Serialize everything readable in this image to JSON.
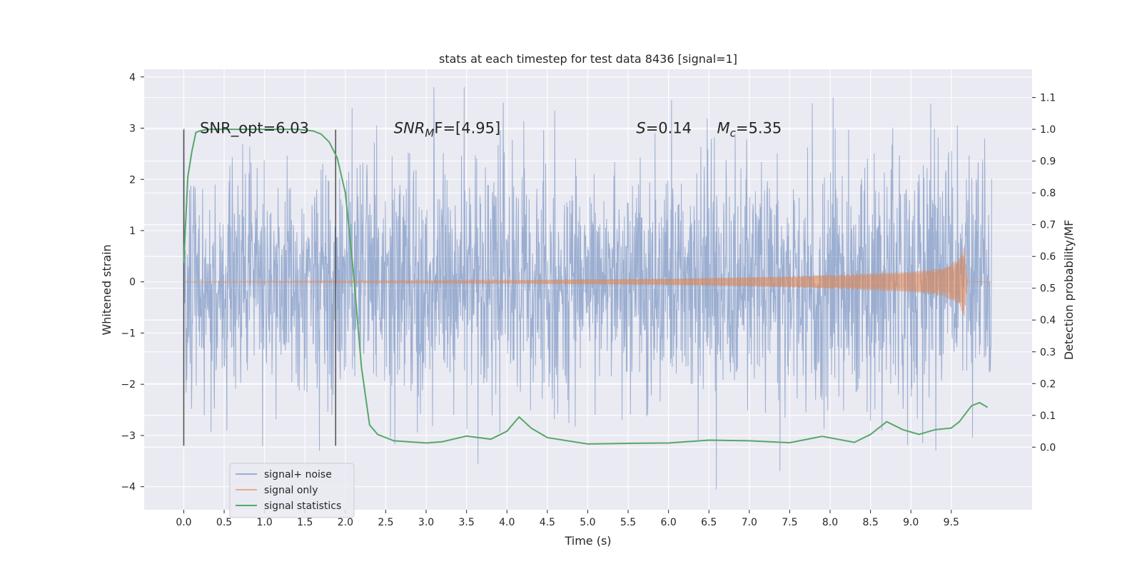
{
  "chart_data": {
    "type": "line",
    "title": "stats at each timestep for test data 8436 [signal=1]",
    "xlabel": "Time (s)",
    "ylabel": "Whitened strain",
    "y2label": "Detection probability/MF",
    "xlim": [
      -0.49,
      10.5
    ],
    "ylim": [
      -4.45,
      4.15
    ],
    "y2lim": [
      -0.197,
      1.189
    ],
    "xticks": [
      0.0,
      0.5,
      1.0,
      1.5,
      2.0,
      2.5,
      3.0,
      3.5,
      4.0,
      4.5,
      5.0,
      5.5,
      6.0,
      6.5,
      7.0,
      7.5,
      8.0,
      8.5,
      9.0,
      9.5
    ],
    "xtick_labels": [
      "0.0",
      "0.5",
      "1.0",
      "1.5",
      "2.0",
      "2.5",
      "3.0",
      "3.5",
      "4.0",
      "4.5",
      "5.0",
      "5.5",
      "6.0",
      "6.5",
      "7.0",
      "7.5",
      "8.0",
      "8.5",
      "9.0",
      "9.5"
    ],
    "yticks": [
      -4,
      -3,
      -2,
      -1,
      0,
      1,
      2,
      3,
      4
    ],
    "ytick_labels": [
      "−4",
      "−3",
      "−2",
      "−1",
      "0",
      "1",
      "2",
      "3",
      "4"
    ],
    "y2ticks": [
      0.0,
      0.1,
      0.2,
      0.3,
      0.4,
      0.5,
      0.6,
      0.7,
      0.8,
      0.9,
      1.0,
      1.1
    ],
    "y2tick_labels": [
      "0.0",
      "0.1",
      "0.2",
      "0.3",
      "0.4",
      "0.5",
      "0.6",
      "0.7",
      "0.8",
      "0.9",
      "1.0",
      "1.1"
    ],
    "grid": true,
    "legend_position": "lower-left",
    "series": [
      {
        "name": "signal+ noise",
        "axis": "left",
        "color": "#4c72b0",
        "opacity": 0.5,
        "x_range": [
          0.0,
          10.0
        ],
        "typical_amplitude": 1.15,
        "peak_min": -4.05,
        "peak_max": 3.8
      },
      {
        "name": "signal only",
        "axis": "left",
        "color": "#dd8452",
        "opacity": 0.6,
        "x_range": [
          0.0,
          10.0
        ],
        "envelope": [
          [
            0.0,
            0.01
          ],
          [
            2.0,
            0.02
          ],
          [
            4.0,
            0.03
          ],
          [
            6.0,
            0.06
          ],
          [
            7.0,
            0.09
          ],
          [
            8.0,
            0.13
          ],
          [
            9.0,
            0.2
          ],
          [
            9.4,
            0.27
          ],
          [
            9.6,
            0.45
          ],
          [
            9.66,
            0.72
          ],
          [
            9.7,
            0.0
          ],
          [
            10.0,
            0.0
          ]
        ]
      },
      {
        "name": "signal statistics",
        "axis": "right",
        "color": "#55a868",
        "x": [
          0.0,
          0.05,
          0.1,
          0.15,
          0.2,
          0.3,
          0.5,
          1.0,
          1.4,
          1.6,
          1.7,
          1.8,
          1.9,
          2.0,
          2.1,
          2.2,
          2.3,
          2.4,
          2.6,
          3.0,
          3.2,
          3.5,
          3.8,
          4.0,
          4.15,
          4.3,
          4.5,
          5.0,
          5.5,
          6.0,
          6.5,
          7.0,
          7.5,
          7.9,
          8.3,
          8.5,
          8.7,
          8.9,
          9.1,
          9.3,
          9.5,
          9.6,
          9.75,
          9.85,
          9.95
        ],
        "y": [
          0.58,
          0.85,
          0.93,
          0.99,
          0.995,
          1.0,
          1.0,
          1.0,
          1.0,
          0.995,
          0.985,
          0.96,
          0.91,
          0.8,
          0.55,
          0.25,
          0.07,
          0.04,
          0.02,
          0.013,
          0.017,
          0.035,
          0.025,
          0.05,
          0.095,
          0.06,
          0.03,
          0.01,
          0.012,
          0.013,
          0.022,
          0.02,
          0.014,
          0.034,
          0.015,
          0.04,
          0.08,
          0.055,
          0.04,
          0.055,
          0.06,
          0.08,
          0.13,
          0.14,
          0.125
        ]
      }
    ],
    "vertical_lines": [
      {
        "x": 0.0,
        "y_min": -3.2,
        "y_max": 2.97
      },
      {
        "x": 1.88,
        "y_min": -3.2,
        "y_max": 2.97
      }
    ],
    "annotations": [
      {
        "id": "snr_opt",
        "text": "SNR_opt=6.03",
        "x": 0.2,
        "y": 3.0
      },
      {
        "id": "snr_mf",
        "main": "SNR",
        "sub": "M",
        "rest": "F=[4.95]",
        "x": 2.6,
        "y": 3.0
      },
      {
        "id": "s",
        "italic": "S",
        "rest": "=0.14",
        "x": 5.6,
        "y": 3.0
      },
      {
        "id": "mc",
        "main": "M",
        "sub": "c",
        "rest": "=5.35",
        "x": 6.6,
        "y": 3.0
      }
    ]
  }
}
